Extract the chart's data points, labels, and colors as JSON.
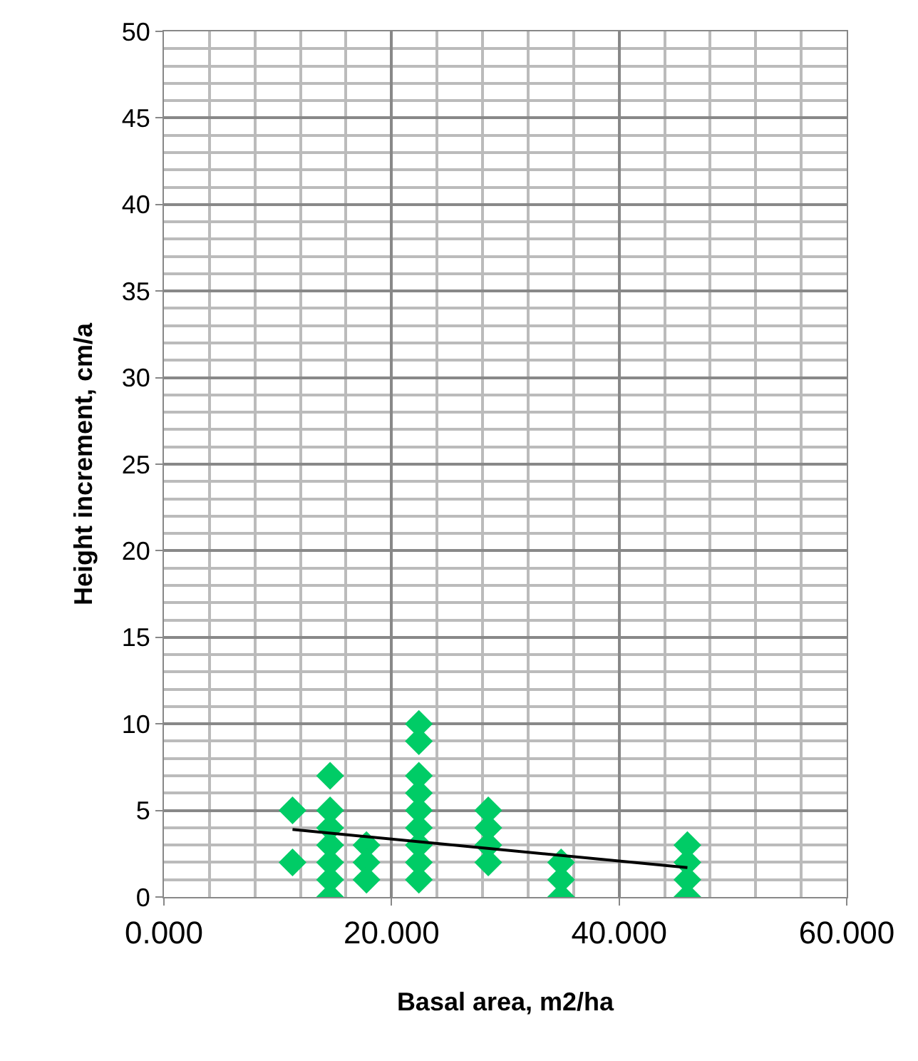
{
  "chart_data": {
    "type": "scatter",
    "xlabel": "Basal area, m2/ha",
    "ylabel": "Height increment, cm/a",
    "xlim": [
      0,
      60
    ],
    "xticks": [
      {
        "value": 0,
        "label": "0.000"
      },
      {
        "value": 20,
        "label": "20.000"
      },
      {
        "value": 40,
        "label": "40.000"
      },
      {
        "value": 60,
        "label": "60.000"
      }
    ],
    "ylim": [
      0,
      50
    ],
    "yticks": [
      0,
      5,
      10,
      15,
      20,
      25,
      30,
      35,
      40,
      45,
      50
    ],
    "grid": true,
    "legend": false,
    "marker": "diamond",
    "series": [
      {
        "color": "#00cc66",
        "x": [
          11.3,
          11.3,
          14.6,
          14.6,
          14.6,
          14.6,
          14.6,
          14.6,
          14.6,
          17.8,
          17.8,
          17.8,
          22.4,
          22.4,
          22.4,
          22.4,
          22.4,
          22.4,
          22.4,
          22.4,
          22.4,
          28.5,
          28.5,
          28.5,
          28.5,
          34.9,
          34.9,
          34.9,
          46.0,
          46.0,
          46.0,
          46.0
        ],
        "values": [
          5,
          2,
          7,
          5,
          4,
          3,
          2,
          1,
          0,
          3,
          2,
          1,
          10,
          9,
          7,
          6,
          5,
          4,
          3,
          2,
          1,
          5,
          4,
          3,
          2,
          2,
          1,
          0,
          3,
          2,
          1,
          0
        ]
      },
      {
        "type": "line",
        "color": "#000000",
        "marker": "none",
        "x": [
          11.3,
          46.0
        ],
        "values": [
          3.9,
          1.7
        ]
      }
    ]
  }
}
